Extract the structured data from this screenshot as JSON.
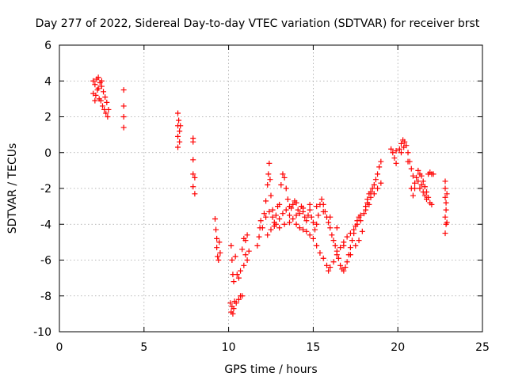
{
  "chart_data": {
    "type": "scatter",
    "title": "Day 277 of 2022, Sidereal Day-to-day VTEC variation (SDTVAR) for receiver brst",
    "xlabel": "GPS time / hours",
    "ylabel": "SDTVAR / TECUs",
    "xlim": [
      0,
      25
    ],
    "ylim": [
      -10,
      6
    ],
    "xticks": [
      "0",
      "5",
      "10",
      "15",
      "20",
      "25"
    ],
    "yticks": [
      "-10",
      "-8",
      "-6",
      "-4",
      "-2",
      "0",
      "2",
      "4",
      "6"
    ],
    "grid": true,
    "legend": "none",
    "marker": "plus",
    "series_color": "#ff0000",
    "series": [
      {
        "points": [
          [
            2.0,
            4.0
          ],
          [
            2.1,
            3.8
          ],
          [
            2.15,
            3.2
          ],
          [
            2.2,
            4.1
          ],
          [
            2.25,
            3.5
          ],
          [
            2.3,
            4.2
          ],
          [
            2.35,
            3.0
          ],
          [
            2.4,
            3.9
          ],
          [
            2.45,
            2.9
          ],
          [
            2.5,
            3.7
          ],
          [
            2.55,
            2.6
          ],
          [
            2.6,
            3.4
          ],
          [
            2.65,
            2.4
          ],
          [
            2.7,
            3.1
          ],
          [
            2.75,
            2.2
          ],
          [
            2.8,
            2.8
          ],
          [
            2.85,
            2.0
          ],
          [
            2.9,
            2.4
          ],
          [
            2.0,
            3.3
          ],
          [
            2.1,
            2.9
          ],
          [
            2.3,
            3.6
          ],
          [
            2.5,
            4.0
          ],
          [
            3.8,
            3.5
          ],
          [
            3.8,
            2.6
          ],
          [
            3.8,
            2.0
          ],
          [
            3.8,
            1.4
          ],
          [
            7.0,
            2.2
          ],
          [
            7.0,
            1.5
          ],
          [
            7.0,
            0.9
          ],
          [
            7.0,
            0.3
          ],
          [
            7.05,
            1.8
          ],
          [
            7.1,
            1.2
          ],
          [
            7.1,
            0.6
          ],
          [
            7.15,
            1.5
          ],
          [
            7.9,
            0.8
          ],
          [
            7.9,
            0.6
          ],
          [
            7.9,
            -0.4
          ],
          [
            7.9,
            -1.2
          ],
          [
            7.9,
            -1.9
          ],
          [
            8.0,
            -1.4
          ],
          [
            8.0,
            -2.3
          ],
          [
            9.2,
            -3.7
          ],
          [
            9.25,
            -4.3
          ],
          [
            9.3,
            -4.8
          ],
          [
            9.3,
            -5.3
          ],
          [
            9.35,
            -5.8
          ],
          [
            9.4,
            -6.0
          ],
          [
            9.45,
            -5.0
          ],
          [
            9.5,
            -5.6
          ],
          [
            10.1,
            -8.4
          ],
          [
            10.15,
            -8.9
          ],
          [
            10.2,
            -8.6
          ],
          [
            10.25,
            -9.0
          ],
          [
            10.3,
            -8.7
          ],
          [
            10.35,
            -8.3
          ],
          [
            10.45,
            -8.4
          ],
          [
            10.6,
            -8.2
          ],
          [
            10.7,
            -8.0
          ],
          [
            10.8,
            -8.0
          ],
          [
            10.15,
            -5.2
          ],
          [
            10.2,
            -6.0
          ],
          [
            10.25,
            -6.8
          ],
          [
            10.3,
            -7.2
          ],
          [
            10.4,
            -5.8
          ],
          [
            10.5,
            -6.8
          ],
          [
            10.6,
            -7.0
          ],
          [
            10.7,
            -6.6
          ],
          [
            10.8,
            -5.4
          ],
          [
            10.9,
            -6.3
          ],
          [
            11.0,
            -5.7
          ],
          [
            11.1,
            -6.0
          ],
          [
            11.2,
            -5.5
          ],
          [
            11.0,
            -4.9
          ],
          [
            10.9,
            -4.8
          ],
          [
            11.1,
            -4.6
          ],
          [
            11.7,
            -5.2
          ],
          [
            11.8,
            -4.7
          ],
          [
            11.85,
            -4.2
          ],
          [
            11.9,
            -3.8
          ],
          [
            12.0,
            -4.2
          ],
          [
            12.1,
            -3.4
          ],
          [
            12.2,
            -2.7
          ],
          [
            12.3,
            -1.8
          ],
          [
            12.35,
            -1.2
          ],
          [
            12.4,
            -0.6
          ],
          [
            12.45,
            -1.5
          ],
          [
            12.5,
            -2.4
          ],
          [
            12.6,
            -3.2
          ],
          [
            12.7,
            -3.9
          ],
          [
            12.8,
            -3.5
          ],
          [
            12.9,
            -3.0
          ],
          [
            13.0,
            -2.9
          ],
          [
            13.1,
            -1.8
          ],
          [
            13.2,
            -1.2
          ],
          [
            13.3,
            -1.4
          ],
          [
            13.4,
            -2.0
          ],
          [
            13.5,
            -2.6
          ],
          [
            13.6,
            -3.0
          ],
          [
            13.7,
            -3.1
          ],
          [
            13.8,
            -2.9
          ],
          [
            13.9,
            -2.7
          ],
          [
            14.0,
            -2.8
          ],
          [
            14.1,
            -3.2
          ],
          [
            14.2,
            -3.4
          ],
          [
            14.3,
            -3.0
          ],
          [
            14.4,
            -3.1
          ],
          [
            14.5,
            -3.6
          ],
          [
            14.6,
            -3.8
          ],
          [
            14.7,
            -3.5
          ],
          [
            14.8,
            -3.2
          ],
          [
            14.9,
            -3.6
          ],
          [
            15.0,
            -3.9
          ],
          [
            15.1,
            -4.3
          ],
          [
            15.2,
            -4.0
          ],
          [
            15.3,
            -3.5
          ],
          [
            15.4,
            -2.9
          ],
          [
            15.5,
            -2.6
          ],
          [
            15.6,
            -2.9
          ],
          [
            15.7,
            -3.3
          ],
          [
            15.8,
            -3.6
          ],
          [
            15.9,
            -3.9
          ],
          [
            16.0,
            -4.2
          ],
          [
            16.1,
            -4.6
          ],
          [
            16.2,
            -4.9
          ],
          [
            16.3,
            -5.2
          ],
          [
            16.4,
            -5.5
          ],
          [
            16.5,
            -5.9
          ],
          [
            16.6,
            -6.3
          ],
          [
            16.7,
            -6.5
          ],
          [
            16.8,
            -6.6
          ],
          [
            16.9,
            -6.4
          ],
          [
            17.0,
            -6.1
          ],
          [
            17.1,
            -5.7
          ],
          [
            17.2,
            -5.3
          ],
          [
            17.3,
            -4.9
          ],
          [
            17.4,
            -4.5
          ],
          [
            17.5,
            -4.1
          ],
          [
            17.6,
            -3.8
          ],
          [
            17.7,
            -3.6
          ],
          [
            17.8,
            -3.5
          ],
          [
            12.2,
            -3.6
          ],
          [
            12.4,
            -3.3
          ],
          [
            12.6,
            -3.6
          ],
          [
            12.8,
            -4.0
          ],
          [
            13.0,
            -3.7
          ],
          [
            13.2,
            -3.4
          ],
          [
            13.4,
            -3.2
          ],
          [
            13.6,
            -3.5
          ],
          [
            13.8,
            -3.7
          ],
          [
            14.0,
            -4.0
          ],
          [
            14.2,
            -4.2
          ],
          [
            14.4,
            -4.3
          ],
          [
            14.6,
            -4.4
          ],
          [
            14.8,
            -4.6
          ],
          [
            15.0,
            -4.8
          ],
          [
            15.2,
            -5.2
          ],
          [
            15.4,
            -5.6
          ],
          [
            15.6,
            -5.9
          ],
          [
            15.8,
            -6.3
          ],
          [
            15.9,
            -6.6
          ],
          [
            16.0,
            -6.4
          ],
          [
            16.2,
            -6.1
          ],
          [
            16.4,
            -5.7
          ],
          [
            16.6,
            -5.3
          ],
          [
            16.8,
            -5.0
          ],
          [
            17.0,
            -4.7
          ],
          [
            17.2,
            -4.5
          ],
          [
            17.4,
            -4.3
          ],
          [
            17.6,
            -4.0
          ],
          [
            17.8,
            -3.8
          ],
          [
            12.3,
            -4.6
          ],
          [
            12.5,
            -4.3
          ],
          [
            12.7,
            -4.1
          ],
          [
            13.0,
            -4.2
          ],
          [
            13.3,
            -4.0
          ],
          [
            13.6,
            -3.9
          ],
          [
            14.0,
            -3.5
          ],
          [
            14.4,
            -3.3
          ],
          [
            14.8,
            -2.9
          ],
          [
            15.2,
            -3.0
          ],
          [
            15.6,
            -3.3
          ],
          [
            16.0,
            -3.6
          ],
          [
            16.4,
            -4.2
          ],
          [
            16.8,
            -5.2
          ],
          [
            17.2,
            -5.7
          ],
          [
            17.5,
            -5.2
          ],
          [
            17.7,
            -4.9
          ],
          [
            17.9,
            -4.4
          ],
          [
            18.0,
            -3.4
          ],
          [
            18.1,
            -3.0
          ],
          [
            18.2,
            -2.6
          ],
          [
            18.3,
            -2.3
          ],
          [
            18.4,
            -2.2
          ],
          [
            18.5,
            -2.0
          ],
          [
            18.6,
            -1.8
          ],
          [
            18.7,
            -1.5
          ],
          [
            18.8,
            -1.2
          ],
          [
            18.9,
            -0.8
          ],
          [
            19.0,
            -0.5
          ],
          [
            18.2,
            -2.8
          ],
          [
            18.4,
            -2.5
          ],
          [
            18.6,
            -2.3
          ],
          [
            18.8,
            -2.0
          ],
          [
            19.0,
            -1.7
          ],
          [
            18.1,
            -3.2
          ],
          [
            18.3,
            -2.9
          ],
          [
            19.6,
            0.2
          ],
          [
            19.7,
            0.0
          ],
          [
            19.8,
            -0.3
          ],
          [
            19.9,
            -0.6
          ],
          [
            19.9,
            0.1
          ],
          [
            20.1,
            0.2
          ],
          [
            20.2,
            0.5
          ],
          [
            20.3,
            0.7
          ],
          [
            20.4,
            0.6
          ],
          [
            20.5,
            0.4
          ],
          [
            20.6,
            0.0
          ],
          [
            20.6,
            -0.5
          ],
          [
            20.2,
            0.0
          ],
          [
            20.35,
            0.3
          ],
          [
            20.7,
            -0.5
          ],
          [
            20.8,
            -0.9
          ],
          [
            20.9,
            -1.3
          ],
          [
            21.0,
            -1.7
          ],
          [
            20.8,
            -2.0
          ],
          [
            20.9,
            -2.4
          ],
          [
            21.0,
            -2.0
          ],
          [
            21.1,
            -1.4
          ],
          [
            21.2,
            -1.0
          ],
          [
            21.3,
            -1.2
          ],
          [
            21.4,
            -1.3
          ],
          [
            21.5,
            -1.6
          ],
          [
            21.6,
            -1.9
          ],
          [
            21.7,
            -2.2
          ],
          [
            21.8,
            -2.5
          ],
          [
            21.9,
            -2.8
          ],
          [
            22.0,
            -2.9
          ],
          [
            21.4,
            -1.8
          ],
          [
            21.6,
            -2.4
          ],
          [
            21.8,
            -1.2
          ],
          [
            21.9,
            -1.1
          ],
          [
            22.0,
            -1.2
          ],
          [
            22.1,
            -1.2
          ],
          [
            21.2,
            -1.6
          ],
          [
            21.3,
            -2.0
          ],
          [
            21.5,
            -2.2
          ],
          [
            21.7,
            -2.6
          ],
          [
            22.8,
            -1.6
          ],
          [
            22.8,
            -2.0
          ],
          [
            22.8,
            -2.5
          ],
          [
            22.85,
            -2.8
          ],
          [
            22.85,
            -3.2
          ],
          [
            22.8,
            -3.6
          ],
          [
            22.85,
            -4.0
          ],
          [
            22.8,
            -4.5
          ],
          [
            22.9,
            -2.3
          ],
          [
            22.9,
            -3.9
          ]
        ]
      }
    ]
  }
}
